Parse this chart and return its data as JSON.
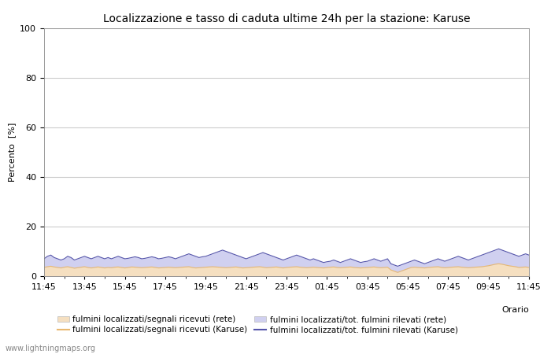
{
  "title": "Localizzazione e tasso di caduta ultime 24h per la stazione: Karuse",
  "xlabel": "Orario",
  "ylabel": "Percento  [%]",
  "ylim": [
    0,
    100
  ],
  "yticks": [
    0,
    20,
    40,
    60,
    80,
    100
  ],
  "yticks_minor": [
    10,
    30,
    50,
    70,
    90
  ],
  "x_labels": [
    "11:45",
    "13:45",
    "15:45",
    "17:45",
    "19:45",
    "21:45",
    "23:45",
    "01:45",
    "03:45",
    "05:45",
    "07:45",
    "09:45",
    "11:45"
  ],
  "n_points": 145,
  "fill_rete_color": "#f5dfc0",
  "fill_karuse_color": "#d0d0f0",
  "line_rete_color": "#e8b870",
  "line_karuse_color": "#5555aa",
  "background_color": "#ffffff",
  "grid_color": "#cccccc",
  "watermark": "www.lightningmaps.org",
  "legend": [
    {
      "label": "fulmini localizzati/segnali ricevuti (rete)",
      "type": "fill",
      "color": "#f5dfc0"
    },
    {
      "label": "fulmini localizzati/segnali ricevuti (Karuse)",
      "type": "line",
      "color": "#e8b870"
    },
    {
      "label": "fulmini localizzati/tot. fulmini rilevati (rete)",
      "type": "fill",
      "color": "#d0d0f0"
    },
    {
      "label": "fulmini localizzati/tot. fulmini rilevati (Karuse)",
      "type": "line",
      "color": "#5555aa"
    }
  ],
  "fill_rete_values": [
    3.5,
    3.8,
    4.0,
    3.7,
    3.5,
    3.3,
    3.6,
    3.8,
    3.5,
    3.2,
    3.4,
    3.6,
    3.8,
    3.5,
    3.3,
    3.5,
    3.7,
    3.5,
    3.3,
    3.5,
    3.4,
    3.6,
    3.7,
    3.5,
    3.3,
    3.5,
    3.7,
    3.6,
    3.5,
    3.4,
    3.5,
    3.6,
    3.7,
    3.5,
    3.3,
    3.4,
    3.5,
    3.6,
    3.5,
    3.4,
    3.5,
    3.6,
    3.7,
    3.8,
    3.5,
    3.3,
    3.4,
    3.5,
    3.6,
    3.7,
    3.8,
    3.7,
    3.6,
    3.5,
    3.4,
    3.5,
    3.6,
    3.7,
    3.5,
    3.3,
    3.4,
    3.5,
    3.6,
    3.7,
    3.8,
    3.6,
    3.4,
    3.5,
    3.6,
    3.7,
    3.5,
    3.3,
    3.5,
    3.6,
    3.7,
    3.8,
    3.6,
    3.5,
    3.4,
    3.5,
    3.6,
    3.5,
    3.4,
    3.3,
    3.5,
    3.6,
    3.7,
    3.5,
    3.4,
    3.5,
    3.6,
    3.7,
    3.5,
    3.4,
    3.3,
    3.4,
    3.5,
    3.6,
    3.7,
    3.5,
    3.4,
    3.5,
    3.6,
    2.5,
    2.0,
    1.5,
    2.0,
    2.5,
    3.0,
    3.5,
    3.6,
    3.5,
    3.4,
    3.3,
    3.5,
    3.6,
    3.7,
    3.8,
    3.5,
    3.4,
    3.5,
    3.6,
    3.7,
    3.8,
    3.6,
    3.5,
    3.4,
    3.5,
    3.6,
    3.7,
    3.8,
    4.0,
    4.2,
    4.5,
    4.8,
    5.0,
    4.8,
    4.5,
    4.2,
    4.0,
    3.8,
    3.5,
    3.6,
    3.7,
    3.5
  ],
  "fill_karuse_values": [
    7.0,
    8.0,
    8.5,
    7.5,
    7.0,
    6.5,
    7.0,
    8.0,
    7.5,
    6.5,
    7.0,
    7.5,
    8.0,
    7.5,
    7.0,
    7.5,
    8.0,
    7.5,
    7.0,
    7.5,
    7.0,
    7.5,
    8.0,
    7.5,
    7.0,
    7.2,
    7.5,
    7.8,
    7.5,
    7.0,
    7.2,
    7.5,
    7.8,
    7.5,
    7.0,
    7.2,
    7.5,
    7.8,
    7.5,
    7.0,
    7.5,
    8.0,
    8.5,
    9.0,
    8.5,
    8.0,
    7.5,
    7.8,
    8.0,
    8.5,
    9.0,
    9.5,
    10.0,
    10.5,
    10.0,
    9.5,
    9.0,
    8.5,
    8.0,
    7.5,
    7.0,
    7.5,
    8.0,
    8.5,
    9.0,
    9.5,
    9.0,
    8.5,
    8.0,
    7.5,
    7.0,
    6.5,
    7.0,
    7.5,
    8.0,
    8.5,
    8.0,
    7.5,
    7.0,
    6.5,
    7.0,
    6.5,
    6.0,
    5.5,
    5.8,
    6.0,
    6.5,
    6.0,
    5.5,
    6.0,
    6.5,
    7.0,
    6.5,
    6.0,
    5.5,
    5.8,
    6.0,
    6.5,
    7.0,
    6.5,
    6.0,
    6.5,
    7.0,
    5.0,
    4.5,
    4.0,
    4.5,
    5.0,
    5.5,
    6.0,
    6.5,
    6.0,
    5.5,
    5.0,
    5.5,
    6.0,
    6.5,
    7.0,
    6.5,
    6.0,
    6.5,
    7.0,
    7.5,
    8.0,
    7.5,
    7.0,
    6.5,
    7.0,
    7.5,
    8.0,
    8.5,
    9.0,
    9.5,
    10.0,
    10.5,
    11.0,
    10.5,
    10.0,
    9.5,
    9.0,
    8.5,
    8.0,
    8.5,
    9.0,
    8.5
  ]
}
